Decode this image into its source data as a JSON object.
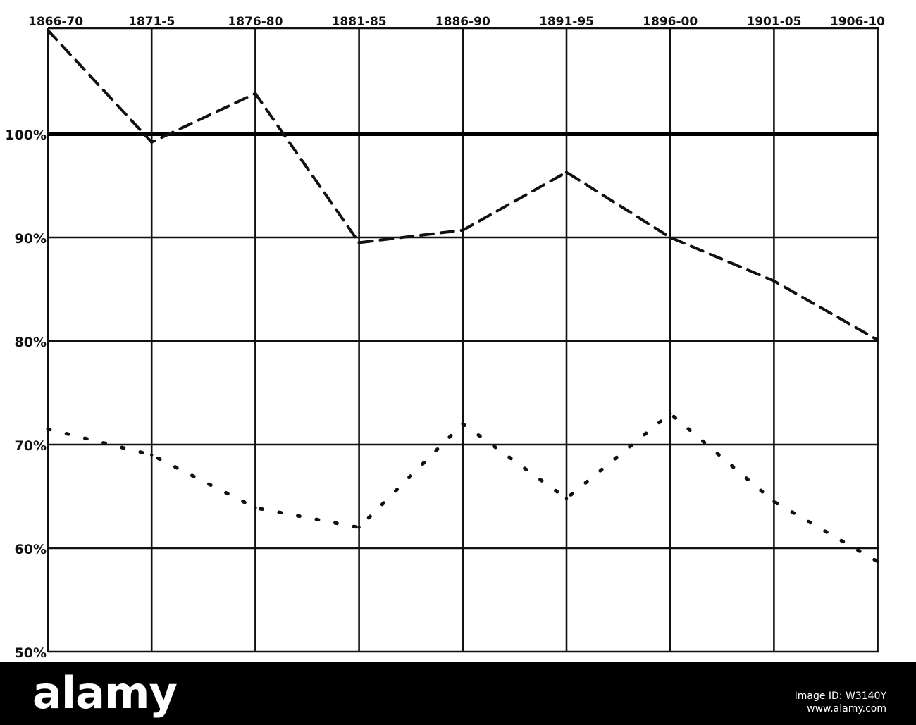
{
  "chart_data": {
    "type": "line",
    "categories": [
      "1866-70",
      "1871-5",
      "1876-80",
      "1881-85",
      "1886-90",
      "1891-95",
      "1896-00",
      "1901-05",
      "1906-10"
    ],
    "x_tick_labels": [
      "1866-70",
      "1871-5",
      "1876-80",
      "1881-85",
      "1886-90",
      "1891-95",
      "1896-00",
      "1901-05",
      "1906-10"
    ],
    "y_tick_labels": [
      "50%",
      "60%",
      "70%",
      "80%",
      "90%",
      "100%"
    ],
    "y_ticks": [
      50,
      60,
      70,
      80,
      90,
      100
    ],
    "ylim": [
      50,
      110
    ],
    "reference_line": {
      "value": 100,
      "style": "solid"
    },
    "series": [
      {
        "style": "dashed",
        "values": [
          110,
          99.2,
          103.9,
          89.5,
          90.7,
          96.3,
          90,
          85.8,
          80.1
        ]
      },
      {
        "style": "dotted",
        "values": [
          71.5,
          69,
          63.9,
          62,
          72,
          64.8,
          73,
          64.5,
          58.7
        ]
      }
    ],
    "title": "",
    "xlabel": "",
    "ylabel": "",
    "grid": true,
    "legend": "none",
    "x_axis_position": "top",
    "line_color": "#111111"
  },
  "footer": {
    "brand": "alamy",
    "image_id": "Image ID: W3140Y",
    "site": "www.alamy.com",
    "background": "#000000",
    "text_color": "#ffffff"
  }
}
